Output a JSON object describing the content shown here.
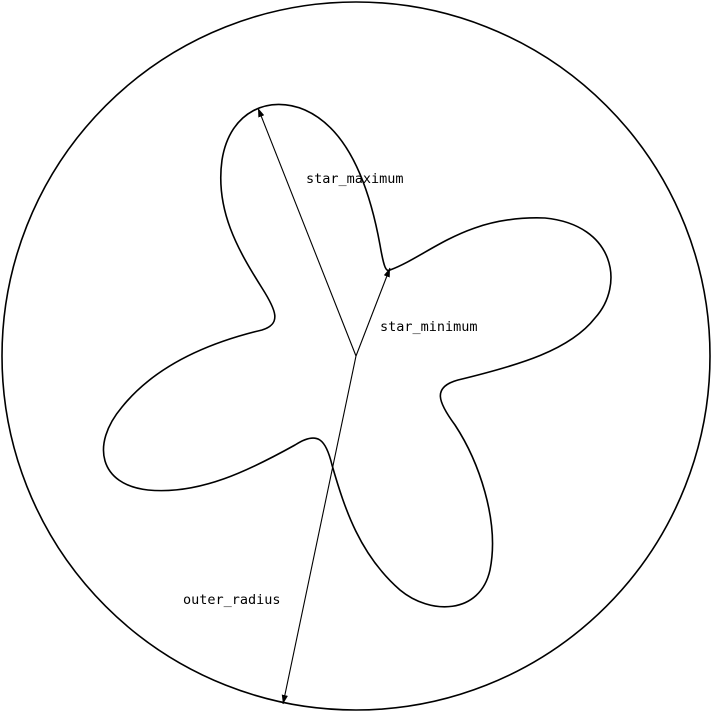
{
  "diagram": {
    "labels": {
      "star_maximum": "star_maximum",
      "star_minimum": "star_minimum",
      "outer_radius": "outer_radius"
    },
    "star": {
      "lobes": 4,
      "shape": "four-lobed star curve (rounded petals with concave notches)"
    },
    "arrows": [
      "star_maximum",
      "star_minimum",
      "outer_radius"
    ],
    "stroke_color": "#000000",
    "background_color": "#ffffff"
  }
}
